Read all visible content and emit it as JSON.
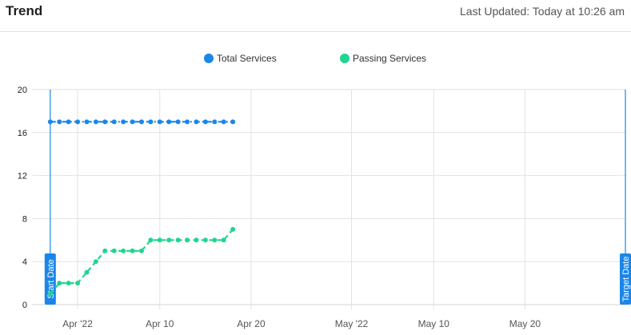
{
  "header": {
    "title": "Trend",
    "last_updated": "Last Updated: Today at 10:26 am"
  },
  "legend": [
    {
      "label": "Total Services",
      "color": "#1a86ea"
    },
    {
      "label": "Passing Services",
      "color": "#1fd68f"
    }
  ],
  "chart_data": {
    "type": "line",
    "title": "",
    "xlabel": "",
    "ylabel": "",
    "ylim": [
      0,
      20
    ],
    "yticks": [
      0,
      4,
      8,
      12,
      16,
      20
    ],
    "xlim": [
      "2022-03-27",
      "2022-05-31"
    ],
    "xticks": [
      {
        "date": "2022-04-01",
        "label": "Apr '22"
      },
      {
        "date": "2022-04-10",
        "label": "Apr 10"
      },
      {
        "date": "2022-04-20",
        "label": "Apr 20"
      },
      {
        "date": "2022-05-01",
        "label": "May '22"
      },
      {
        "date": "2022-05-10",
        "label": "May 10"
      },
      {
        "date": "2022-05-20",
        "label": "May 20"
      }
    ],
    "grid": true,
    "legend_position": "top",
    "x": [
      "2022-03-29",
      "2022-03-30",
      "2022-03-31",
      "2022-04-01",
      "2022-04-02",
      "2022-04-03",
      "2022-04-04",
      "2022-04-05",
      "2022-04-06",
      "2022-04-07",
      "2022-04-08",
      "2022-04-09",
      "2022-04-10",
      "2022-04-11",
      "2022-04-12",
      "2022-04-13",
      "2022-04-14",
      "2022-04-15",
      "2022-04-16",
      "2022-04-17",
      "2022-04-18"
    ],
    "series": [
      {
        "name": "Total Services",
        "color": "#1a86ea",
        "style": "dash-dot",
        "values": [
          17,
          17,
          17,
          17,
          17,
          17,
          17,
          17,
          17,
          17,
          17,
          17,
          17,
          17,
          17,
          17,
          17,
          17,
          17,
          17,
          17
        ]
      },
      {
        "name": "Passing Services",
        "color": "#1fd68f",
        "style": "dashed",
        "values": [
          1,
          2,
          2,
          2,
          3,
          4,
          5,
          5,
          5,
          5,
          5,
          6,
          6,
          6,
          6,
          6,
          6,
          6,
          6,
          6,
          7
        ]
      }
    ],
    "markers": [
      {
        "label": "Start Date",
        "date": "2022-03-29",
        "color": "#1a86ea"
      },
      {
        "label": "Target Date",
        "date": "2022-05-31",
        "color": "#1a86ea"
      }
    ]
  }
}
